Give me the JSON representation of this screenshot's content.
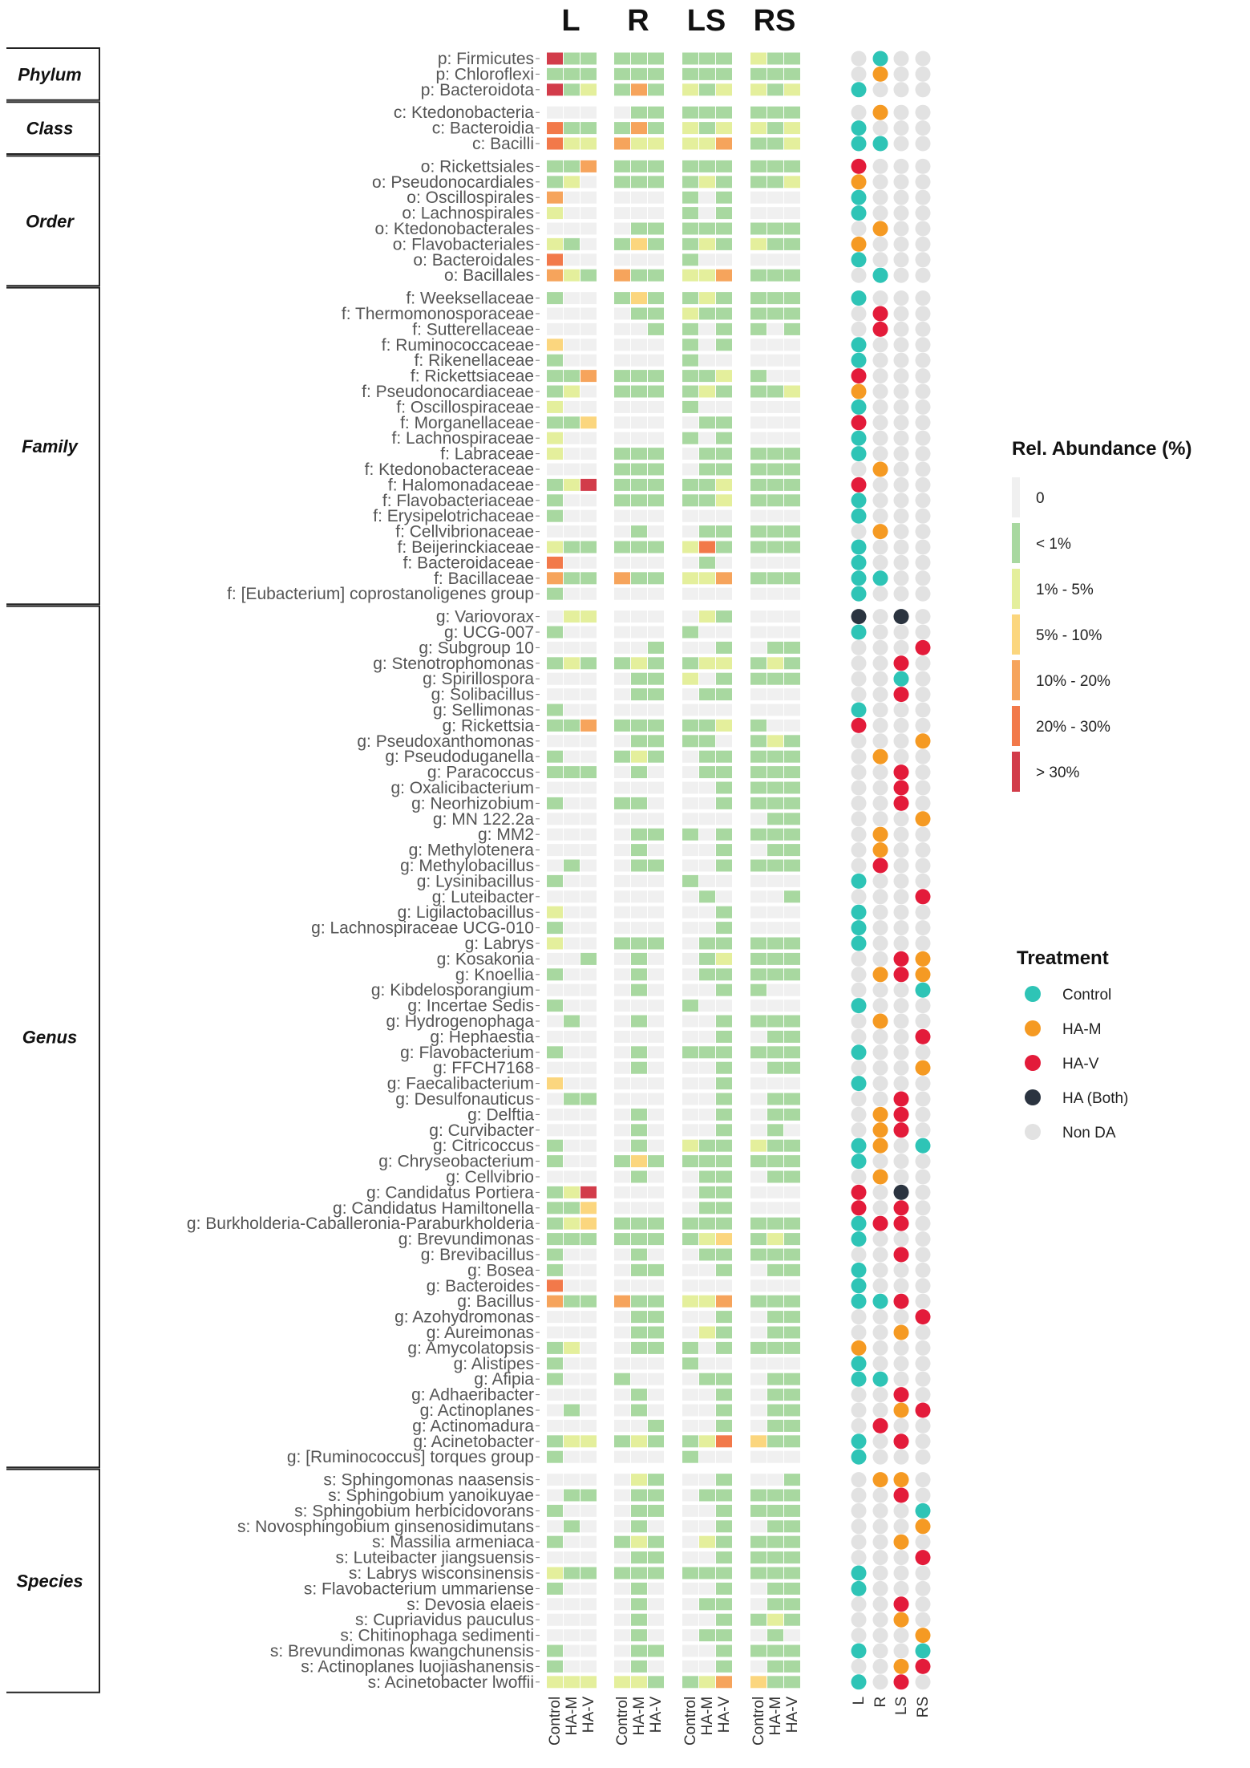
{
  "chart_data": {
    "type": "heatmap",
    "title": "",
    "panels": [
      "L",
      "R",
      "LS",
      "RS"
    ],
    "treatments": [
      "Control",
      "HA-M",
      "HA-V"
    ],
    "levels": [
      "0",
      "< 1%",
      "1% - 5%",
      "5% - 10%",
      "10% - 20%",
      "20% - 30%",
      "> 30%"
    ],
    "level_colors": [
      "#f0f0f0",
      "#a8d8a0",
      "#e4ef9c",
      "#fbd67e",
      "#f6a45c",
      "#f2794a",
      "#d23c4a"
    ],
    "legend_title": "Rel. Abundance (%)",
    "da_title": "Treatment",
    "da_categories": [
      "Control",
      "HA-M",
      "HA-V",
      "HA (Both)",
      "Non DA"
    ],
    "da_colors": [
      "#2ec4b6",
      "#f59a23",
      "#e31b3a",
      "#2b3440",
      "#e2e2e2"
    ],
    "da_columns": [
      "L",
      "R",
      "LS",
      "RS"
    ],
    "groups": [
      {
        "rank": "Phylum",
        "rows": [
          {
            "taxon": "p: Firmicutes",
            "cells": "611111111211",
            "da": "ACAA"
          },
          {
            "taxon": "p: Chloroflexi",
            "cells": "111111111111",
            "da": "ABAA"
          },
          {
            "taxon": "p: Bacteroidota",
            "cells": "612141212212",
            "da": "CAAA"
          }
        ]
      },
      {
        "rank": "Class",
        "rows": [
          {
            "taxon": "c: Ktedonobacteria",
            "cells": "000011111111",
            "da": "ABAA"
          },
          {
            "taxon": "c: Bacteroidia",
            "cells": "511141212212",
            "da": "CAAA"
          },
          {
            "taxon": "c: Bacilli",
            "cells": "522422224112",
            "da": "CCAA"
          }
        ]
      },
      {
        "rank": "Order",
        "rows": [
          {
            "taxon": "o: Rickettsiales",
            "cells": "114111111111",
            "da": "DAAA"
          },
          {
            "taxon": "o: Pseudonocardiales",
            "cells": "120111121112",
            "da": "BAAA"
          },
          {
            "taxon": "o: Oscillospirales",
            "cells": "400000101000",
            "da": "CAAA"
          },
          {
            "taxon": "o: Lachnospirales",
            "cells": "200000101000",
            "da": "CAAA"
          },
          {
            "taxon": "o: Ktedonobacterales",
            "cells": "000011111111",
            "da": "ABAA"
          },
          {
            "taxon": "o: Flavobacteriales",
            "cells": "210131121211",
            "da": "BAAA"
          },
          {
            "taxon": "o: Bacteroidales",
            "cells": "500000100000",
            "da": "CAAA"
          },
          {
            "taxon": "o: Bacillales",
            "cells": "421411224111",
            "da": "ACAA"
          }
        ]
      },
      {
        "rank": "Family",
        "rows": [
          {
            "taxon": "f: Weeksellaceae",
            "cells": "100131121111",
            "da": "CAAA"
          },
          {
            "taxon": "f: Thermomonosporaceae",
            "cells": "000011211111",
            "da": "ADAA"
          },
          {
            "taxon": "f: Sutterellaceae",
            "cells": "000001101101",
            "da": "ADAA"
          },
          {
            "taxon": "f: Ruminococcaceae",
            "cells": "300000101000",
            "da": "CAAA"
          },
          {
            "taxon": "f: Rikenellaceae",
            "cells": "100000100000",
            "da": "CAAA"
          },
          {
            "taxon": "f: Rickettsiaceae",
            "cells": "114111112100",
            "da": "DAAA"
          },
          {
            "taxon": "f: Pseudonocardiaceae",
            "cells": "120111121112",
            "da": "BAAA"
          },
          {
            "taxon": "f: Oscillospiraceae",
            "cells": "200000100000",
            "da": "CAAA"
          },
          {
            "taxon": "f: Morganellaceae",
            "cells": "113000011000",
            "da": "DAAA"
          },
          {
            "taxon": "f: Lachnospiraceae",
            "cells": "200000101000",
            "da": "CAAA"
          },
          {
            "taxon": "f: Labraceae",
            "cells": "200111011111",
            "da": "CAAA"
          },
          {
            "taxon": "f: Ktedonobacteraceae",
            "cells": "000111011111",
            "da": "ABAA"
          },
          {
            "taxon": "f: Halomonadaceae",
            "cells": "126111112111",
            "da": "DAAA"
          },
          {
            "taxon": "f: Flavobacteriaceae",
            "cells": "100111112111",
            "da": "CAAA"
          },
          {
            "taxon": "f: Erysipelotrichaceae",
            "cells": "100000000000",
            "da": "CAAA"
          },
          {
            "taxon": "f: Cellvibrionaceae",
            "cells": "000010011111",
            "da": "ABAA"
          },
          {
            "taxon": "f: Beijerinckiaceae",
            "cells": "211111251111",
            "da": "CAAA"
          },
          {
            "taxon": "f: Bacteroidaceae",
            "cells": "500000010000",
            "da": "CAAA"
          },
          {
            "taxon": "f: Bacillaceae",
            "cells": "411411224111",
            "da": "CCAA"
          },
          {
            "taxon": "f: [Eubacterium] coprostanoligenes group",
            "cells": "100000000000",
            "da": "CAAA"
          }
        ]
      },
      {
        "rank": "Genus",
        "rows": [
          {
            "taxon": "g: Variovorax",
            "cells": "022000021000",
            "da": "EAEA"
          },
          {
            "taxon": "g: UCG-007",
            "cells": "100000100000",
            "da": "CAAA"
          },
          {
            "taxon": "g: Subgroup 10",
            "cells": "000001001011",
            "da": "AAAD"
          },
          {
            "taxon": "g: Stenotrophomonas",
            "cells": "121121122121",
            "da": "AADA"
          },
          {
            "taxon": "g: Spirillospora",
            "cells": "000011201111",
            "da": "AACA"
          },
          {
            "taxon": "g: Solibacillus",
            "cells": "000011011000",
            "da": "AADA"
          },
          {
            "taxon": "g: Sellimonas",
            "cells": "100000000000",
            "da": "CAAA"
          },
          {
            "taxon": "g: Rickettsia",
            "cells": "114111112100",
            "da": "DAAA"
          },
          {
            "taxon": "g: Pseudoxanthomonas",
            "cells": "000011110121",
            "da": "AAAB"
          },
          {
            "taxon": "g: Pseudoduganella",
            "cells": "100121011111",
            "da": "ABAA"
          },
          {
            "taxon": "g: Paracoccus",
            "cells": "111010011111",
            "da": "AADA"
          },
          {
            "taxon": "g: Oxalicibacterium",
            "cells": "000000001111",
            "da": "AADA"
          },
          {
            "taxon": "g: Neorhizobium",
            "cells": "100110001111",
            "da": "AADA"
          },
          {
            "taxon": "g: MN 122.2a",
            "cells": "000000000011",
            "da": "AAAB"
          },
          {
            "taxon": "g: MM2",
            "cells": "000011101111",
            "da": "ABAA"
          },
          {
            "taxon": "g: Methylotenera",
            "cells": "000010001011",
            "da": "ABAA"
          },
          {
            "taxon": "g: Methylobacillus",
            "cells": "010011001111",
            "da": "ADAA"
          },
          {
            "taxon": "g: Lysinibacillus",
            "cells": "100000100000",
            "da": "CAAA"
          },
          {
            "taxon": "g: Luteibacter",
            "cells": "000000010001",
            "da": "AAAD"
          },
          {
            "taxon": "g: Ligilactobacillus",
            "cells": "200000001000",
            "da": "CAAA"
          },
          {
            "taxon": "g: Lachnospiraceae UCG-010",
            "cells": "100000001000",
            "da": "CAAA"
          },
          {
            "taxon": "g: Labrys",
            "cells": "200111011111",
            "da": "CAAA"
          },
          {
            "taxon": "g: Kosakonia",
            "cells": "001010012111",
            "da": "AADB"
          },
          {
            "taxon": "g: Knoellia",
            "cells": "100010011111",
            "da": "ABDB"
          },
          {
            "taxon": "g: Kibdelosporangium",
            "cells": "000010001100",
            "da": "AAAC"
          },
          {
            "taxon": "g: Incertae Sedis",
            "cells": "100000100000",
            "da": "CAAA"
          },
          {
            "taxon": "g: Hydrogenophaga",
            "cells": "010010001111",
            "da": "ABAA"
          },
          {
            "taxon": "g: Hephaestia",
            "cells": "000000001011",
            "da": "AAAD"
          },
          {
            "taxon": "g: Flavobacterium",
            "cells": "100010111111",
            "da": "CAAA"
          },
          {
            "taxon": "g: FFCH7168",
            "cells": "000010001011",
            "da": "AAAB"
          },
          {
            "taxon": "g: Faecalibacterium",
            "cells": "300000001000",
            "da": "CAAA"
          },
          {
            "taxon": "g: Desulfonauticus",
            "cells": "011000001011",
            "da": "AADA"
          },
          {
            "taxon": "g: Delftia",
            "cells": "000010001011",
            "da": "ABDA"
          },
          {
            "taxon": "g: Curvibacter",
            "cells": "000010001010",
            "da": "ABDA"
          },
          {
            "taxon": "g: Citricoccus",
            "cells": "100010211211",
            "da": "CBAC"
          },
          {
            "taxon": "g: Chryseobacterium",
            "cells": "100131111111",
            "da": "CAAA"
          },
          {
            "taxon": "g: Cellvibrio",
            "cells": "000010011011",
            "da": "ABAA"
          },
          {
            "taxon": "g: Candidatus Portiera",
            "cells": "126000011000",
            "da": "DAEA"
          },
          {
            "taxon": "g: Candidatus Hamiltonella",
            "cells": "113000011000",
            "da": "DADA"
          },
          {
            "taxon": "g: Burkholderia-Caballeronia-Paraburkholderia",
            "cells": "123111111111",
            "da": "CDDA"
          },
          {
            "taxon": "g: Brevundimonas",
            "cells": "111111123121",
            "da": "CAAA"
          },
          {
            "taxon": "g: Brevibacillus",
            "cells": "100010011111",
            "da": "AADA"
          },
          {
            "taxon": "g: Bosea",
            "cells": "100011001011",
            "da": "CAAA"
          },
          {
            "taxon": "g: Bacteroides",
            "cells": "500000000000",
            "da": "CAAA"
          },
          {
            "taxon": "g: Bacillus",
            "cells": "411411224111",
            "da": "CCDA"
          },
          {
            "taxon": "g: Azohydromonas",
            "cells": "000011001011",
            "da": "AAAD"
          },
          {
            "taxon": "g: Aureimonas",
            "cells": "000011021011",
            "da": "AABA"
          },
          {
            "taxon": "g: Amycolatopsis",
            "cells": "120011101111",
            "da": "BAAA"
          },
          {
            "taxon": "g: Alistipes",
            "cells": "100000100000",
            "da": "CAAA"
          },
          {
            "taxon": "g: Afipia",
            "cells": "100100011011",
            "da": "CCAA"
          },
          {
            "taxon": "g: Adhaeribacter",
            "cells": "000010001011",
            "da": "AADA"
          },
          {
            "taxon": "g: Actinoplanes",
            "cells": "010010001011",
            "da": "AABD"
          },
          {
            "taxon": "g: Actinomadura",
            "cells": "000001001011",
            "da": "ADAA"
          },
          {
            "taxon": "g: Acinetobacter",
            "cells": "122121125311",
            "da": "CADA"
          },
          {
            "taxon": "g: [Ruminococcus] torques group",
            "cells": "100000100000",
            "da": "CAAA"
          }
        ]
      },
      {
        "rank": "Species",
        "rows": [
          {
            "taxon": "s: Sphingomonas naasensis",
            "cells": "000021001001",
            "da": "ABBA"
          },
          {
            "taxon": "s: Sphingobium yanoikuyae",
            "cells": "011011011111",
            "da": "AADA"
          },
          {
            "taxon": "s: Sphingobium herbicidovorans",
            "cells": "100011001111",
            "da": "AAAC"
          },
          {
            "taxon": "s: Novosphingobium ginsenosidimutans",
            "cells": "010010001011",
            "da": "AAAB"
          },
          {
            "taxon": "s: Massilia armeniaca",
            "cells": "100121021111",
            "da": "AABA"
          },
          {
            "taxon": "s: Luteibacter jiangsuensis",
            "cells": "000011001111",
            "da": "AAAD"
          },
          {
            "taxon": "s: Labrys wisconsinensis",
            "cells": "211111111111",
            "da": "CAAA"
          },
          {
            "taxon": "s: Flavobacterium ummariense",
            "cells": "100010001011",
            "da": "CAAA"
          },
          {
            "taxon": "s: Devosia elaeis",
            "cells": "000010011011",
            "da": "AADA"
          },
          {
            "taxon": "s: Cupriavidus pauculus",
            "cells": "000010001121",
            "da": "AABA"
          },
          {
            "taxon": "s: Chitinophaga sedimenti",
            "cells": "000010011010",
            "da": "AAAB"
          },
          {
            "taxon": "s: Brevundimonas kwangchunensis",
            "cells": "100011001111",
            "da": "CAAC"
          },
          {
            "taxon": "s: Actinoplanes luojiashanensis",
            "cells": "100010001011",
            "da": "AABD"
          },
          {
            "taxon": "s: Acinetobacter lwoffii",
            "cells": "222221124311",
            "da": "CADA"
          }
        ]
      }
    ]
  }
}
